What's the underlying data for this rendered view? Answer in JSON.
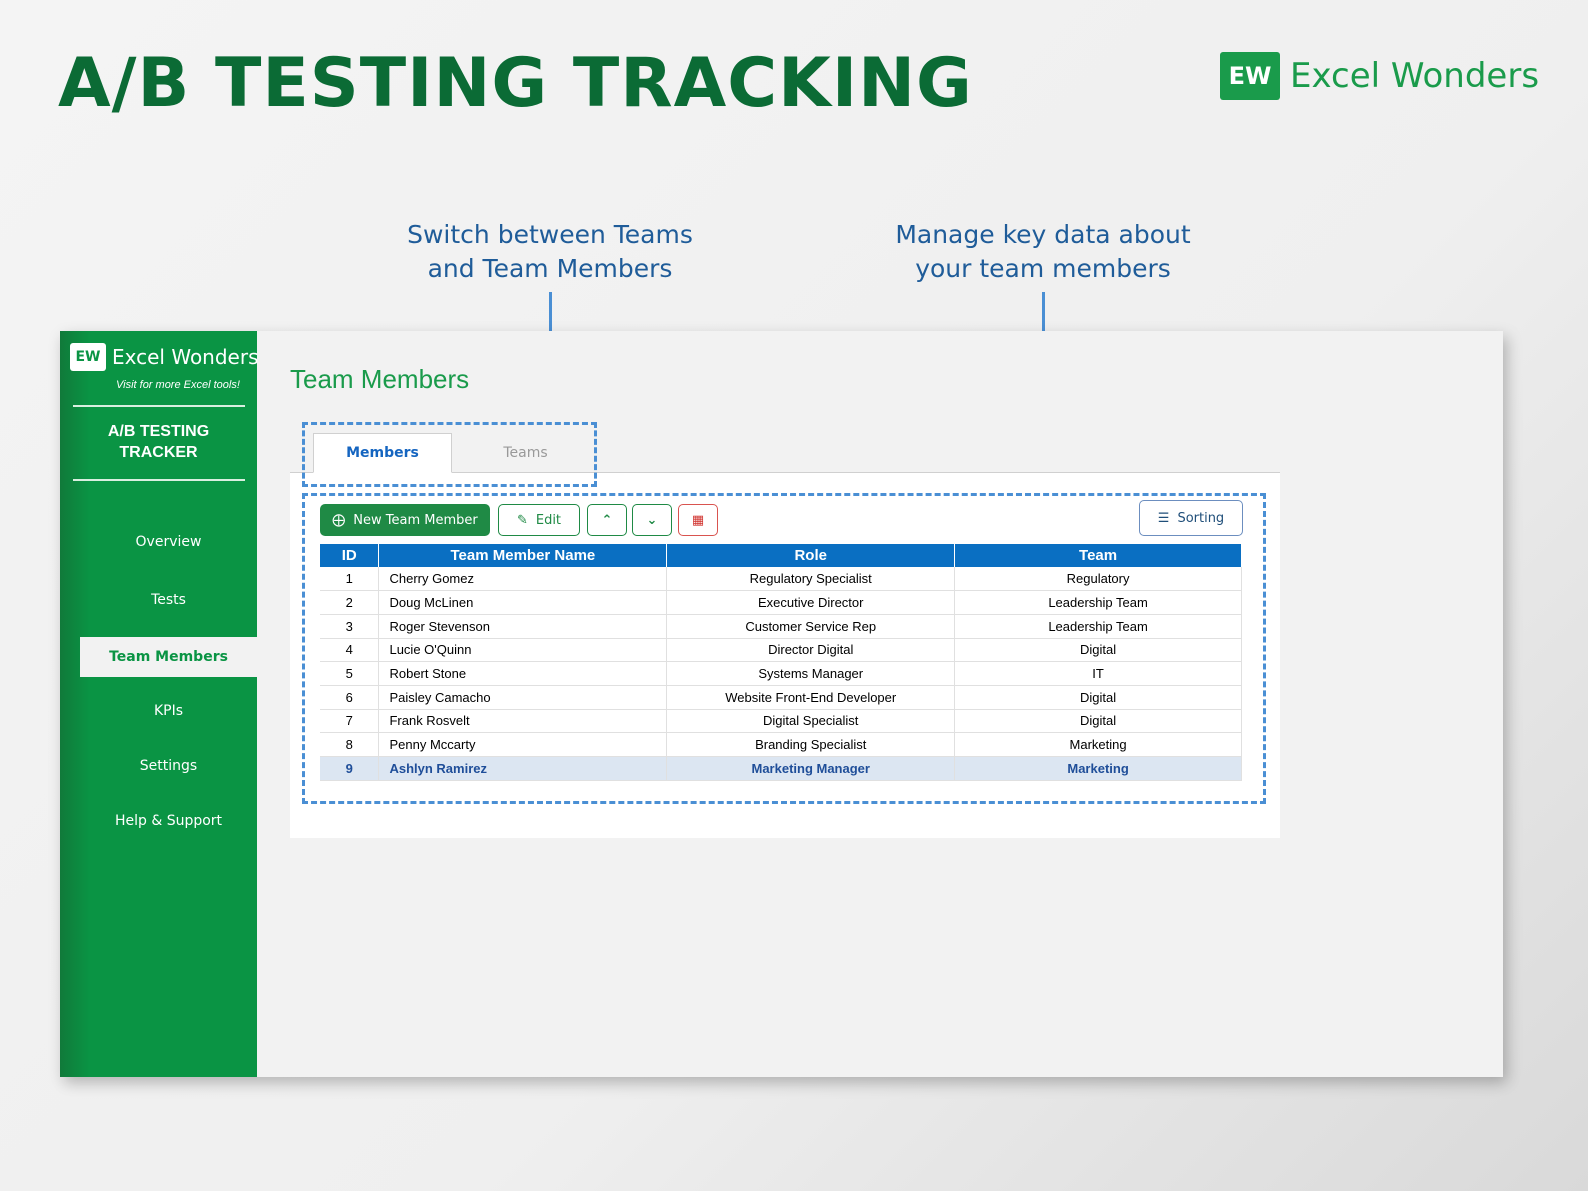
{
  "title": "A/B TESTING TRACKING",
  "brand": {
    "logo": "EW",
    "name": "Excel Wonders",
    "tagline": "Visit for more Excel tools!"
  },
  "annotations": {
    "tabs_line1": "Switch between Teams",
    "tabs_line2": "and Team Members",
    "data_line1": "Manage key data about",
    "data_line2": "your team members"
  },
  "sidebar": {
    "app_line1": "A/B TESTING",
    "app_line2": "TRACKER",
    "items": [
      {
        "label": "Overview"
      },
      {
        "label": "Tests"
      },
      {
        "label": "Team Members",
        "active": true
      },
      {
        "label": "KPIs"
      },
      {
        "label": "Settings"
      },
      {
        "label": "Help & Support"
      }
    ]
  },
  "main": {
    "page_title": "Team Members",
    "tabs": [
      {
        "label": "Members"
      },
      {
        "label": "Teams"
      }
    ],
    "toolbar": {
      "new": "New Team Member",
      "edit": "Edit",
      "sorting": "Sorting"
    },
    "columns": [
      "ID",
      "Team Member Name",
      "Role",
      "Team"
    ],
    "rows": [
      [
        "1",
        "Cherry Gomez",
        "Regulatory Specialist",
        "Regulatory"
      ],
      [
        "2",
        "Doug McLinen",
        "Executive Director",
        "Leadership Team"
      ],
      [
        "3",
        "Roger Stevenson",
        "Customer Service Rep",
        "Leadership Team"
      ],
      [
        "4",
        "Lucie O'Quinn",
        "Director Digital",
        "Digital"
      ],
      [
        "5",
        "Robert Stone",
        "Systems Manager",
        "IT"
      ],
      [
        "6",
        "Paisley Camacho",
        "Website Front-End Developer",
        "Digital"
      ],
      [
        "7",
        "Frank Rosvelt",
        "Digital Specialist",
        "Digital"
      ],
      [
        "8",
        "Penny Mccarty",
        "Branding Specialist",
        "Marketing"
      ],
      [
        "9",
        "Ashlyn Ramirez",
        "Marketing Manager",
        "Marketing"
      ]
    ],
    "selected_row": 9
  },
  "colors": {
    "brand_green": "#0a9444",
    "title_green": "#0b6b35",
    "header_blue": "#0a6fc2",
    "annotation_blue": "#4a8fd4"
  }
}
